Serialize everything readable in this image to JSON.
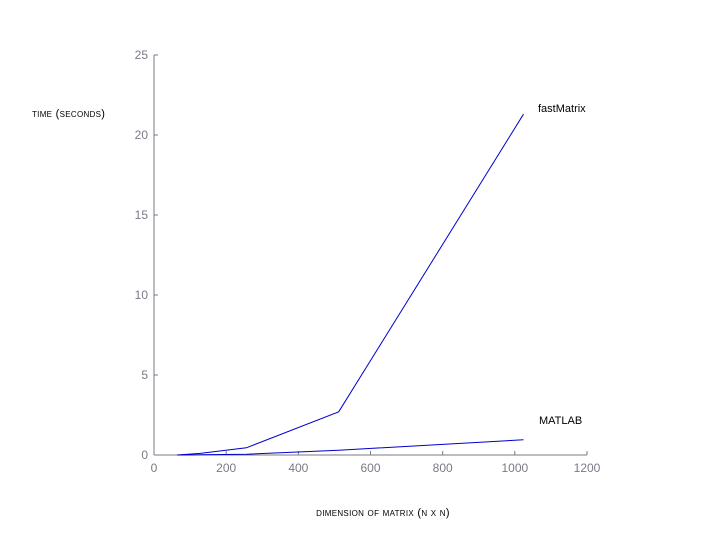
{
  "chart_data": {
    "type": "line",
    "title": "",
    "xlabel": "dimension of matrix (n x n)",
    "ylabel": "time (seconds)",
    "xlim": [
      0,
      1200
    ],
    "ylim": [
      0,
      25
    ],
    "xticks": [
      0,
      200,
      400,
      600,
      800,
      1000,
      1200
    ],
    "yticks": [
      0,
      5,
      10,
      15,
      20,
      25
    ],
    "grid": false,
    "series": [
      {
        "name": "fastMatrix",
        "color": "#0000cc",
        "x": [
          64,
          128,
          256,
          512,
          1024
        ],
        "y": [
          0.0,
          0.1,
          0.45,
          2.7,
          21.3
        ]
      },
      {
        "name": "MATLAB",
        "color": "#0000cc",
        "x": [
          64,
          128,
          256,
          512,
          1024
        ],
        "y": [
          0.0,
          0.01,
          0.05,
          0.3,
          0.95
        ]
      }
    ],
    "annotations": [
      {
        "text": "fastMatrix",
        "series": "fastMatrix"
      },
      {
        "text": "MATLAB",
        "series": "MATLAB"
      }
    ]
  }
}
